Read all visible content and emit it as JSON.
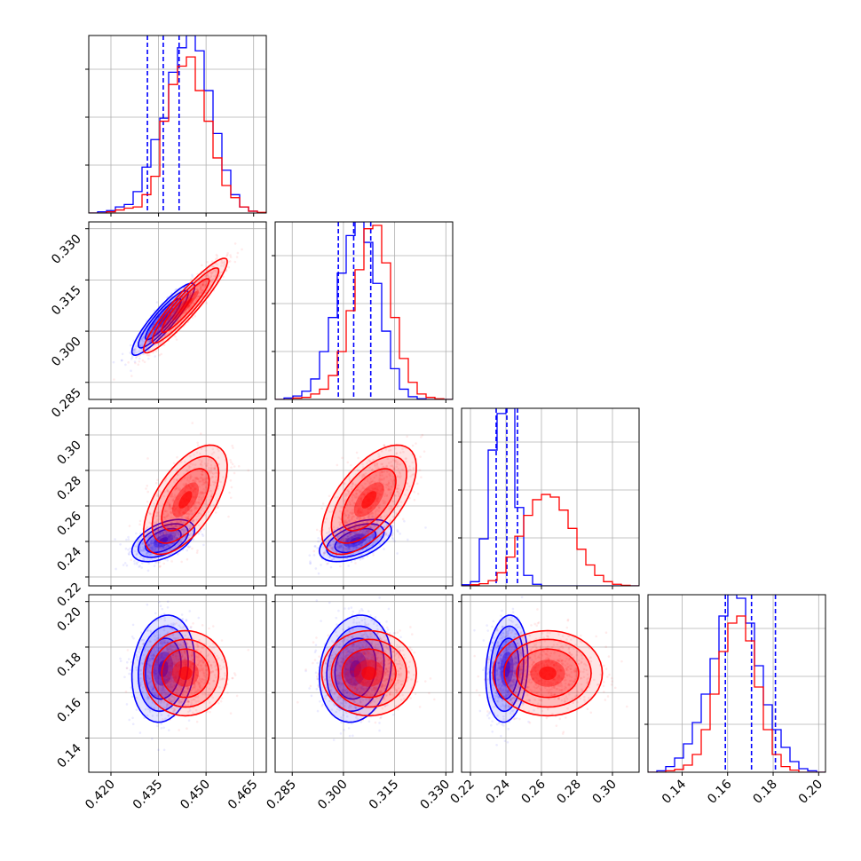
{
  "chart_data": {
    "type": "corner",
    "grid": true,
    "colors": {
      "blue": "#0000ff",
      "red": "#ff0000"
    },
    "parameters": [
      {
        "range": [
          0.413,
          0.469
        ],
        "ticks": [
          "0.420",
          "0.435",
          "0.450",
          "0.465"
        ]
      },
      {
        "range": [
          0.28,
          0.332
        ],
        "ticks": [
          "0.285",
          "0.300",
          "0.315",
          "0.330"
        ]
      },
      {
        "range": [
          0.215,
          0.315
        ],
        "ticks": [
          "0.22",
          "0.24",
          "0.26",
          "0.28",
          "0.30"
        ]
      },
      {
        "range": [
          0.125,
          0.203
        ],
        "ticks": [
          "0.14",
          "0.16",
          "0.18",
          "0.20"
        ]
      }
    ],
    "series": [
      {
        "color": "blue",
        "mean": [
          0.4365,
          0.3035,
          0.2405,
          0.1705
        ],
        "sd": [
          0.0045,
          0.0048,
          0.0054,
          0.0107
        ],
        "corr": {
          "0-1": 0.9,
          "0-2": 0.5,
          "1-2": 0.5,
          "0-3": 0.15,
          "1-3": 0.15,
          "2-3": 0.15
        },
        "quantile_lines": [
          [
            0.4315,
            0.4365,
            0.4415
          ],
          [
            0.2985,
            0.303,
            0.308
          ],
          [
            0.2345,
            0.2405,
            0.2465
          ],
          [
            0.159,
            0.1705,
            0.181
          ]
        ],
        "hist_counts": [
          [
            0,
            2,
            4,
            10,
            14,
            35,
            75,
            120,
            155,
            230,
            270,
            290,
            265,
            200,
            130,
            70,
            30,
            10,
            3,
            0
          ],
          [
            0,
            2,
            5,
            12,
            30,
            70,
            120,
            185,
            240,
            260,
            230,
            170,
            100,
            45,
            15,
            4,
            1,
            0,
            0,
            0
          ],
          [
            2,
            8,
            90,
            260,
            330,
            340,
            150,
            20,
            3,
            0,
            0,
            0,
            0,
            0,
            0,
            0,
            0,
            0,
            0,
            0
          ],
          [
            0,
            2,
            8,
            20,
            40,
            70,
            110,
            160,
            220,
            250,
            245,
            210,
            150,
            95,
            60,
            35,
            15,
            5,
            2,
            0
          ]
        ]
      },
      {
        "color": "red",
        "mean": [
          0.4435,
          0.3075,
          0.2635,
          0.1685
        ],
        "sd": [
          0.006,
          0.0063,
          0.014,
          0.0085
        ],
        "corr": {
          "0-1": 0.93,
          "0-2": 0.6,
          "1-2": 0.6,
          "0-3": 0.0,
          "1-3": 0.0,
          "2-3": 0.0
        },
        "hist_counts": [
          [
            0,
            0,
            2,
            5,
            8,
            10,
            30,
            60,
            150,
            210,
            240,
            255,
            200,
            150,
            90,
            45,
            25,
            10,
            3,
            1
          ],
          [
            0,
            0,
            2,
            3,
            8,
            15,
            35,
            70,
            130,
            190,
            250,
            255,
            200,
            120,
            60,
            25,
            8,
            3,
            1,
            0
          ],
          [
            0,
            2,
            4,
            10,
            25,
            55,
            95,
            135,
            165,
            175,
            170,
            145,
            110,
            70,
            40,
            20,
            8,
            3,
            1,
            0
          ],
          [
            0,
            0,
            2,
            4,
            10,
            25,
            60,
            110,
            170,
            210,
            220,
            185,
            120,
            60,
            25,
            8,
            3,
            0,
            0,
            0
          ]
        ]
      }
    ]
  }
}
